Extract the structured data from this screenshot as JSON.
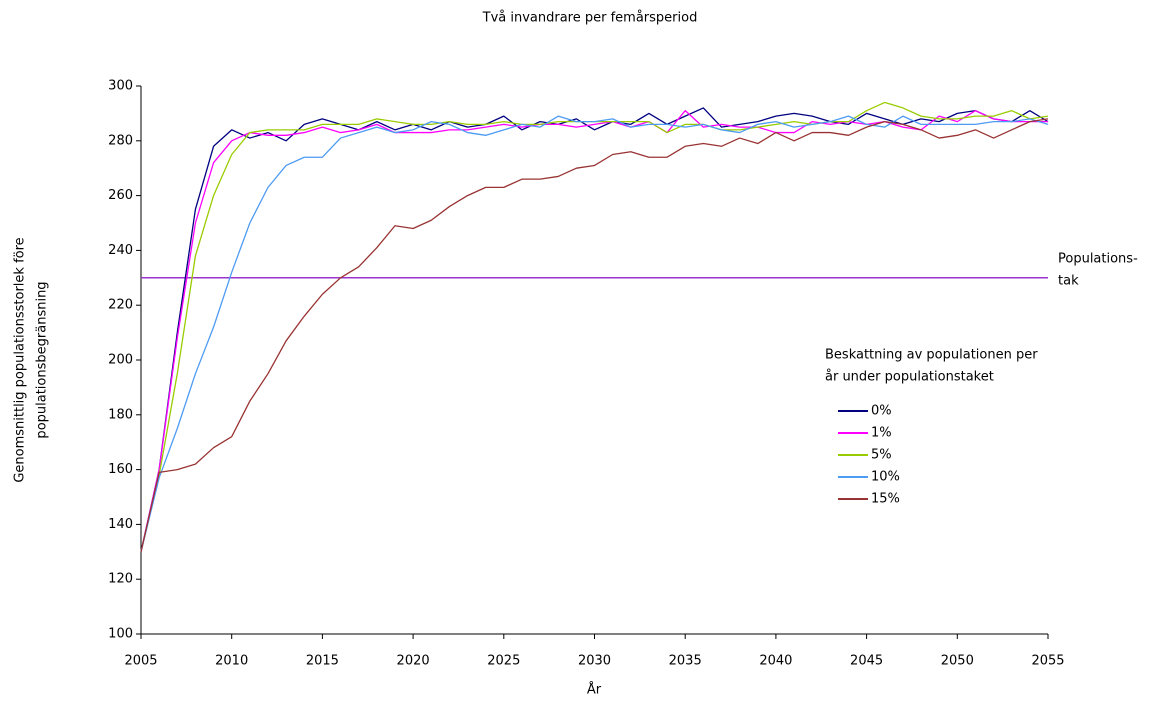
{
  "chart_data": {
    "type": "line",
    "title": "Två invandrare per femårsperiod",
    "x_label": "År",
    "y_label": [
      "Genomsnittlig populationsstorlek före",
      "populationsbegränsning"
    ],
    "xlim": [
      2005,
      2055
    ],
    "xticks": [
      2005,
      2010,
      2015,
      2020,
      2025,
      2030,
      2035,
      2040,
      2045,
      2050,
      2055
    ],
    "ylim": [
      100,
      300
    ],
    "yticks": [
      100,
      120,
      140,
      160,
      180,
      200,
      220,
      240,
      260,
      280,
      300
    ],
    "grid": false,
    "legend_title": [
      "Beskattning av populationen per",
      "år under populationstaket"
    ],
    "legend_position": "right",
    "reference_line": {
      "value": 230,
      "label": [
        "Populations-",
        "tak"
      ],
      "color": "#9933cc"
    },
    "x": [
      2005,
      2006,
      2007,
      2008,
      2009,
      2010,
      2011,
      2012,
      2013,
      2014,
      2015,
      2016,
      2017,
      2018,
      2019,
      2020,
      2021,
      2022,
      2023,
      2024,
      2025,
      2026,
      2027,
      2028,
      2029,
      2030,
      2031,
      2032,
      2033,
      2034,
      2035,
      2036,
      2037,
      2038,
      2039,
      2040,
      2041,
      2042,
      2043,
      2044,
      2045,
      2046,
      2047,
      2048,
      2049,
      2050,
      2051,
      2052,
      2053,
      2054,
      2055
    ],
    "series": [
      {
        "name": "0%",
        "color": "#000080",
        "values": [
          130,
          160,
          210,
          255,
          278,
          284,
          281,
          283,
          280,
          286,
          288,
          286,
          284,
          287,
          284,
          286,
          284,
          287,
          285,
          286,
          289,
          284,
          287,
          286,
          288,
          284,
          287,
          286,
          290,
          286,
          289,
          292,
          285,
          286,
          287,
          289,
          290,
          289,
          287,
          286,
          290,
          288,
          286,
          288,
          287,
          290,
          291,
          288,
          287,
          291,
          287
        ]
      },
      {
        "name": "1%",
        "color": "#ff00ff",
        "values": [
          130,
          160,
          208,
          250,
          272,
          280,
          283,
          282,
          282,
          283,
          285,
          283,
          284,
          286,
          283,
          283,
          283,
          284,
          284,
          285,
          286,
          285,
          286,
          286,
          285,
          286,
          287,
          285,
          287,
          283,
          291,
          285,
          286,
          285,
          285,
          283,
          283,
          287,
          286,
          287,
          286,
          287,
          285,
          284,
          289,
          287,
          291,
          288,
          287,
          287,
          287
        ]
      },
      {
        "name": "5%",
        "color": "#99cc00",
        "values": [
          130,
          158,
          195,
          238,
          260,
          275,
          283,
          284,
          284,
          284,
          286,
          286,
          286,
          288,
          287,
          286,
          286,
          287,
          286,
          286,
          287,
          286,
          286,
          287,
          287,
          287,
          287,
          287,
          287,
          283,
          286,
          286,
          284,
          284,
          285,
          286,
          287,
          286,
          287,
          287,
          291,
          294,
          292,
          289,
          288,
          288,
          289,
          289,
          291,
          288,
          289
        ]
      },
      {
        "name": "10%",
        "color": "#4d9bf3",
        "values": [
          130,
          157,
          175,
          195,
          212,
          232,
          250,
          263,
          271,
          274,
          274,
          281,
          283,
          285,
          283,
          284,
          287,
          286,
          283,
          282,
          284,
          286,
          285,
          289,
          287,
          287,
          288,
          285,
          286,
          286,
          285,
          286,
          284,
          283,
          286,
          287,
          285,
          286,
          287,
          289,
          286,
          285,
          289,
          286,
          286,
          286,
          286,
          287,
          287,
          288,
          286
        ]
      },
      {
        "name": "15%",
        "color": "#993333",
        "values": [
          130,
          159,
          160,
          162,
          168,
          172,
          185,
          195,
          207,
          216,
          224,
          230,
          234,
          241,
          249,
          248,
          251,
          256,
          260,
          263,
          263,
          266,
          266,
          267,
          270,
          271,
          275,
          276,
          274,
          274,
          278,
          279,
          278,
          281,
          279,
          283,
          280,
          283,
          283,
          282,
          285,
          287,
          286,
          284,
          281,
          282,
          284,
          281,
          284,
          287,
          288
        ]
      }
    ]
  }
}
